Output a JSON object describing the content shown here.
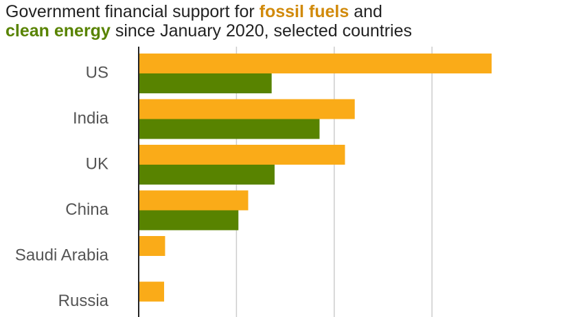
{
  "chart_data": {
    "type": "bar",
    "orientation": "horizontal",
    "title": [
      "Government financial support for",
      "and",
      "since January 2020, selected countries"
    ],
    "categories": [
      "US",
      "India",
      "UK",
      "China",
      "Saudi Arabia",
      "Russia"
    ],
    "series": [
      {
        "name": "fossil fuels",
        "color": "#faab18",
        "title_color": "#d18a0b",
        "values": [
          3.61,
          2.21,
          2.11,
          1.12,
          0.27,
          0.26
        ]
      },
      {
        "name": "clean energy",
        "color": "#588300",
        "title_color": "#588300",
        "values": [
          1.36,
          1.85,
          1.39,
          1.02,
          null,
          null
        ]
      }
    ],
    "xlim": [
      0,
      4.34
    ],
    "xticks": [
      0,
      1,
      2,
      3
    ],
    "grid": true
  }
}
